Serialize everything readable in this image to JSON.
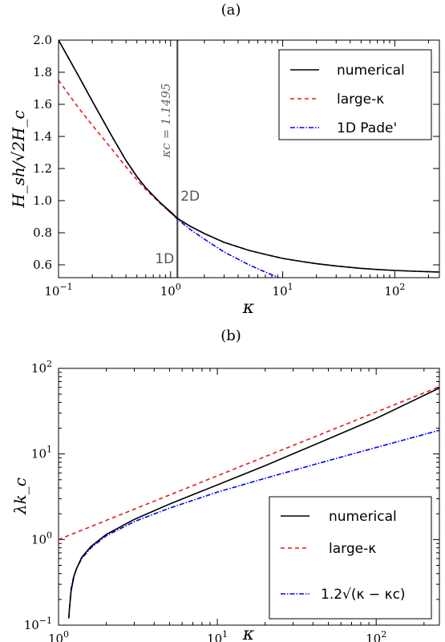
{
  "colors": {
    "numerical": "#000000",
    "large_kappa": "#e31a1c",
    "pade": "#0000ff",
    "vertical_line": "#4d4d4d"
  },
  "chart_data": [
    {
      "panel_label": "(a)",
      "type": "line",
      "xscale": "log",
      "yscale": "linear",
      "xlim": [
        0.1,
        250
      ],
      "ylim": [
        0.52,
        2.0
      ],
      "xlabel": "κ",
      "ylabel": "H_sh/√2H_c",
      "x_ticks": [
        {
          "value": 0.1,
          "base": "10",
          "exp": "−1"
        },
        {
          "value": 1,
          "base": "10",
          "exp": "0"
        },
        {
          "value": 10,
          "base": "10",
          "exp": "1"
        },
        {
          "value": 100,
          "base": "10",
          "exp": "2"
        }
      ],
      "y_ticks": [
        "0.6",
        "0.8",
        "1.0",
        "1.2",
        "1.4",
        "1.6",
        "1.8",
        "2.0"
      ],
      "legend_position": "top-right",
      "annotations": {
        "kappa_c_label": "κc = 1.1495",
        "kappa_c_value": 1.1495,
        "label_1d": "1D",
        "label_2d": "2D"
      },
      "series": [
        {
          "name": "numerical",
          "style": "solid",
          "x": [
            0.1,
            0.15,
            0.2,
            0.3,
            0.4,
            0.5,
            0.6,
            0.8,
            1.0,
            1.1495,
            1.5,
            2,
            3,
            5,
            7,
            10,
            15,
            20,
            30,
            50,
            70,
            100,
            150,
            200,
            250
          ],
          "y": [
            2.0,
            1.78,
            1.62,
            1.4,
            1.25,
            1.15,
            1.08,
            0.99,
            0.93,
            0.89,
            0.84,
            0.795,
            0.74,
            0.69,
            0.665,
            0.64,
            0.62,
            0.607,
            0.593,
            0.578,
            0.571,
            0.565,
            0.56,
            0.557,
            0.555
          ]
        },
        {
          "name": "large-κ",
          "style": "dashed",
          "x": [
            0.1,
            0.15,
            0.2,
            0.3,
            0.4,
            0.5,
            0.6,
            0.8,
            1.0,
            1.1495,
            1.5,
            2,
            3,
            5,
            7,
            10,
            15,
            20,
            30,
            50,
            70,
            100,
            150,
            200,
            250
          ],
          "y": [
            1.75,
            1.58,
            1.47,
            1.32,
            1.21,
            1.13,
            1.07,
            0.985,
            0.925,
            0.89,
            0.84,
            0.795,
            0.74,
            0.69,
            0.665,
            0.64,
            0.62,
            0.607,
            0.593,
            0.578,
            0.571,
            0.565,
            0.56,
            0.557,
            0.555
          ]
        },
        {
          "name": "1D Pade'",
          "style": "dashdot",
          "x": [
            0.1,
            0.15,
            0.2,
            0.3,
            0.4,
            0.5,
            0.6,
            0.8,
            1.0,
            1.1495,
            1.5,
            2,
            3,
            5,
            7,
            10
          ],
          "y": [
            2.0,
            1.78,
            1.62,
            1.4,
            1.25,
            1.15,
            1.08,
            0.99,
            0.925,
            0.885,
            0.82,
            0.76,
            0.68,
            0.6,
            0.555,
            0.51
          ]
        }
      ]
    },
    {
      "panel_label": "(b)",
      "type": "line",
      "xscale": "log",
      "yscale": "log",
      "xlim": [
        1,
        250
      ],
      "ylim": [
        0.1,
        100
      ],
      "xlabel": "κ",
      "ylabel": "λk_c",
      "x_ticks": [
        {
          "value": 1,
          "base": "10",
          "exp": "0"
        },
        {
          "value": 10,
          "base": "10",
          "exp": "1"
        },
        {
          "value": 100,
          "base": "10",
          "exp": "2"
        }
      ],
      "y_ticks": [
        {
          "value": 0.1,
          "base": "10",
          "exp": "−1"
        },
        {
          "value": 1,
          "base": "10",
          "exp": "0"
        },
        {
          "value": 10,
          "base": "10",
          "exp": "1"
        },
        {
          "value": 100,
          "base": "10",
          "exp": "2"
        }
      ],
      "legend_position": "bottom-right",
      "series": [
        {
          "name": "numerical",
          "style": "solid",
          "x": [
            1.16,
            1.17,
            1.2,
            1.25,
            1.3,
            1.4,
            1.6,
            2,
            3,
            5,
            10,
            20,
            50,
            100,
            250
          ],
          "y": [
            0.12,
            0.15,
            0.25,
            0.37,
            0.46,
            0.62,
            0.83,
            1.15,
            1.72,
            2.6,
            4.35,
            7.3,
            15.0,
            26.0,
            59.0
          ]
        },
        {
          "name": "large-κ",
          "style": "dashed",
          "x": [
            1,
            250
          ],
          "y": [
            1.0,
            61.0
          ]
        },
        {
          "name": "1.2√(κ − κc)",
          "style": "dashdot",
          "x": [
            1.16,
            1.17,
            1.2,
            1.25,
            1.3,
            1.4,
            1.6,
            2,
            3,
            5,
            10,
            20,
            50,
            100,
            250
          ],
          "y": [
            0.12,
            0.15,
            0.27,
            0.38,
            0.46,
            0.6,
            0.8,
            1.11,
            1.62,
            2.33,
            3.58,
            5.2,
            8.36,
            11.9,
            18.9
          ]
        }
      ]
    }
  ]
}
